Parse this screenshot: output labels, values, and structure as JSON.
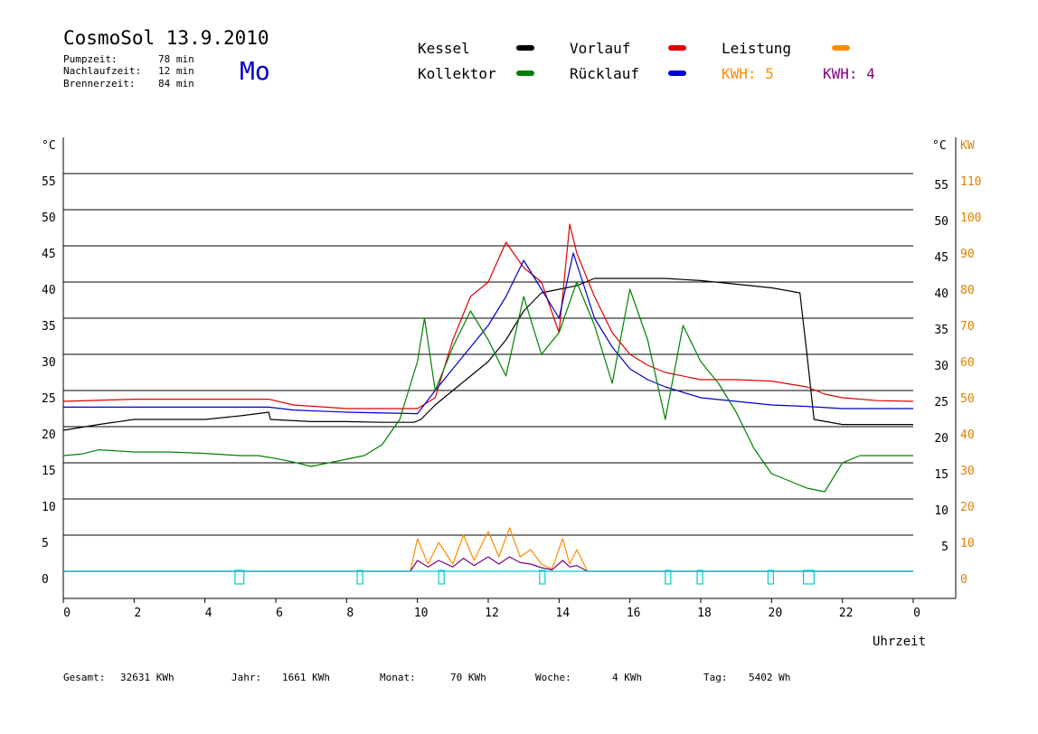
{
  "header": {
    "title": "CosmoSol 13.9.2010",
    "pump_label": "Pumpzeit:",
    "pump_value": "78 min",
    "after_label": "Nachlaufzeit:",
    "after_value": "12 min",
    "burner_label": "Brennerzeit:",
    "burner_value": "84 min",
    "day": "Mo"
  },
  "legend": {
    "kessel": "Kessel",
    "kollektor": "Kollektor",
    "vorlauf": "Vorlauf",
    "ruecklauf": "Rücklauf",
    "leistung": "Leistung",
    "kwh1": "KWH: 5",
    "kwh2": "KWH: 4"
  },
  "colors": {
    "kessel": "#000000",
    "kollektor": "#008000",
    "vorlauf": "#e00000",
    "ruecklauf": "#0000cc",
    "leistung": "#ff8c00",
    "leistung2": "#800080",
    "pump": "#00cccc",
    "kw_axis": "#e08000",
    "day": "#0000cc"
  },
  "footer": {
    "gesamt_label": "Gesamt:",
    "gesamt_value": "32631 KWh",
    "jahr_label": "Jahr:",
    "jahr_value": "1661 KWh",
    "monat_label": "Monat:",
    "monat_value": "70 KWh",
    "woche_label": "Woche:",
    "woche_value": "4 KWh",
    "tag_label": "Tag:",
    "tag_value": "5402 Wh"
  },
  "chart_data": {
    "type": "line",
    "xlabel": "Uhrzeit",
    "y_unit_left": "°C",
    "y_unit_right": "°C",
    "y2_unit": "KW",
    "xlim": [
      0,
      24
    ],
    "ylim": [
      0,
      60
    ],
    "x_ticks": [
      "0",
      "2",
      "4",
      "6",
      "8",
      "10",
      "12",
      "14",
      "16",
      "18",
      "20",
      "22",
      "0"
    ],
    "y_ticks": [
      "0",
      "5",
      "10",
      "15",
      "20",
      "25",
      "30",
      "35",
      "40",
      "45",
      "50",
      "55"
    ],
    "y2_ticks": [
      "0",
      "10",
      "20",
      "30",
      "40",
      "50",
      "60",
      "70",
      "80",
      "90",
      "100",
      "110"
    ],
    "grid": true,
    "series": [
      {
        "name": "Kessel",
        "color": "#000000",
        "x": [
          0,
          1,
          2,
          3,
          4,
          5,
          5.8,
          5.85,
          7,
          8,
          9,
          9.9,
          10.1,
          10.5,
          11,
          11.5,
          12,
          12.5,
          13,
          13.5,
          14,
          14.5,
          15,
          16,
          17,
          18,
          19,
          20,
          20.8,
          21.0,
          21.2,
          22,
          23,
          24
        ],
        "y": [
          19.5,
          20.3,
          21,
          21,
          21,
          21.5,
          22,
          21,
          20.7,
          20.7,
          20.6,
          20.6,
          21,
          23,
          25,
          27,
          29,
          32,
          36,
          38.5,
          39,
          39.5,
          40.5,
          40.5,
          40.5,
          40.2,
          39.7,
          39.2,
          38.5,
          30,
          21,
          20.3,
          20.3,
          20.3
        ]
      },
      {
        "name": "Vorlauf",
        "color": "#e00000",
        "x": [
          0,
          2,
          4,
          5.8,
          6.5,
          8,
          10,
          10.5,
          11,
          11.5,
          12,
          12.5,
          13,
          13.5,
          14,
          14.3,
          14.5,
          15,
          15.5,
          16,
          16.5,
          17,
          18,
          19,
          20,
          21,
          21.5,
          22,
          23,
          24
        ],
        "y": [
          23.5,
          23.8,
          23.8,
          23.8,
          23,
          22.5,
          22.5,
          24,
          32,
          38,
          40,
          45.5,
          42,
          40,
          33,
          48,
          44,
          38,
          33,
          30,
          28.5,
          27.5,
          26.5,
          26.5,
          26.3,
          25.5,
          24.5,
          24,
          23.6,
          23.5
        ]
      },
      {
        "name": "Rücklauf",
        "color": "#0000cc",
        "x": [
          0,
          2,
          4,
          5.8,
          6.5,
          8,
          10,
          10.5,
          11,
          11.5,
          12,
          12.5,
          13,
          13.5,
          14,
          14.4,
          14.8,
          15,
          15.5,
          16,
          16.5,
          17,
          18,
          19,
          20,
          21,
          22,
          23,
          24
        ],
        "y": [
          22.7,
          22.7,
          22.7,
          22.7,
          22.3,
          22,
          21.8,
          25,
          28,
          31,
          34,
          38,
          43,
          39,
          35,
          44,
          38,
          35,
          31,
          28,
          26.5,
          25.5,
          24,
          23.5,
          23,
          22.8,
          22.5,
          22.5,
          22.5
        ]
      },
      {
        "name": "Kollektor",
        "color": "#008000",
        "x": [
          0,
          0.5,
          1,
          2,
          3,
          4,
          5,
          5.5,
          6,
          6.5,
          7,
          8,
          8.5,
          9,
          9.5,
          10,
          10.2,
          10.5,
          11,
          11.5,
          12,
          12.5,
          13,
          13.5,
          14,
          14.5,
          15,
          15.5,
          16,
          16.5,
          17,
          17.5,
          18,
          18.5,
          19,
          19.5,
          20,
          20.5,
          21,
          21.5,
          22,
          22.5,
          23,
          23.5,
          24
        ],
        "y": [
          16,
          16.2,
          16.8,
          16.5,
          16.5,
          16.3,
          16,
          16,
          15.6,
          15.1,
          14.5,
          15.5,
          16,
          17.5,
          21,
          29,
          35,
          25,
          31,
          36,
          32,
          27,
          38,
          30,
          33,
          40,
          34,
          26,
          39,
          32,
          21,
          34,
          29,
          26,
          22,
          17,
          13.5,
          12.5,
          11.5,
          11,
          15,
          16,
          16,
          16,
          16
        ]
      },
      {
        "name": "Leistung",
        "color": "#ff8c00",
        "x": [
          0,
          9.8,
          10,
          10.3,
          10.6,
          11,
          11.3,
          11.6,
          12,
          12.3,
          12.6,
          12.9,
          13.2,
          13.5,
          13.8,
          14.1,
          14.3,
          14.5,
          14.8,
          24
        ],
        "y": [
          0,
          0,
          4.5,
          1,
          4,
          1,
          5,
          1.5,
          5.5,
          2,
          6,
          2,
          3,
          1,
          0.3,
          4.5,
          1,
          3,
          0,
          0
        ]
      },
      {
        "name": "Leistung2",
        "color": "#800080",
        "x": [
          0,
          9.8,
          10,
          10.3,
          10.6,
          11,
          11.3,
          11.6,
          12,
          12.3,
          12.6,
          12.9,
          13.2,
          13.5,
          13.8,
          14.1,
          14.3,
          14.5,
          14.8,
          24
        ],
        "y": [
          0,
          0,
          1.5,
          0.6,
          1.5,
          0.6,
          1.8,
          0.8,
          2,
          1,
          2,
          1.2,
          1,
          0.5,
          0.2,
          1.5,
          0.6,
          0.8,
          0,
          0
        ]
      },
      {
        "name": "Pumpe",
        "color": "#00cccc",
        "x": [
          0,
          24
        ],
        "y": [
          0,
          0
        ]
      }
    ],
    "pump_markers": [
      {
        "from": 4.85,
        "to": 5.1
      },
      {
        "from": 8.3,
        "to": 8.4
      },
      {
        "from": 10.6,
        "to": 10.75
      },
      {
        "from": 13.45,
        "to": 13.55
      },
      {
        "from": 17.0,
        "to": 17.1
      },
      {
        "from": 17.9,
        "to": 18.0
      },
      {
        "from": 19.9,
        "to": 20.0
      },
      {
        "from": 20.9,
        "to": 21.2
      }
    ]
  }
}
